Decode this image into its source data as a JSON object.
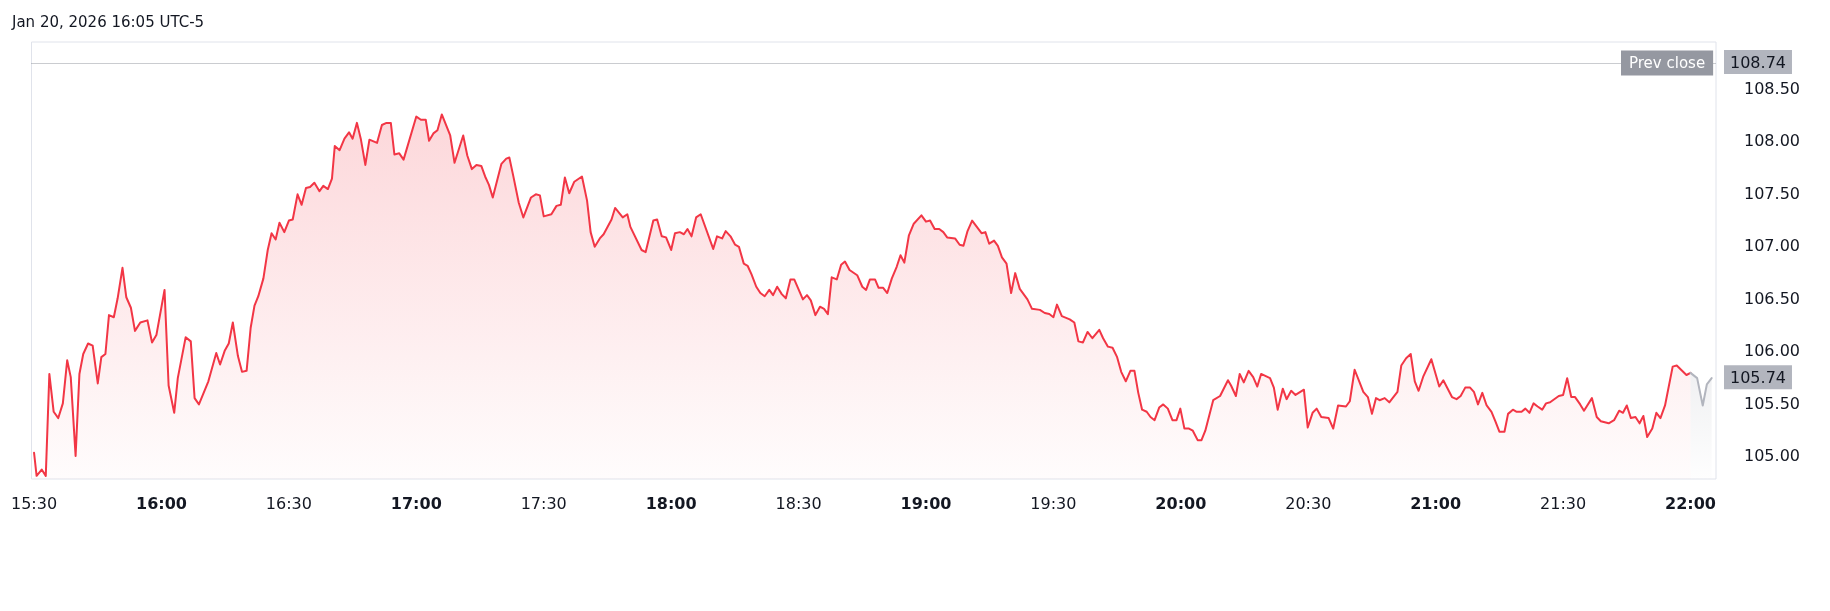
{
  "chart_data": {
    "type": "area",
    "annotations": [
      "Jan 20, 2026 16:05 UTC-5",
      "105.74",
      "108.74"
    ],
    "xlim": [
      15.49,
      22.1
    ],
    "xticks": [
      {
        "value": 15.5,
        "label": "15:30"
      },
      {
        "value": 16,
        "label": "16:00"
      },
      {
        "value": 16.5,
        "label": "16:30"
      },
      {
        "value": 17,
        "label": "17:00"
      },
      {
        "value": 17.5,
        "label": "17:30"
      },
      {
        "value": 18,
        "label": "18:00"
      },
      {
        "value": 18.5,
        "label": "18:30"
      },
      {
        "value": 19,
        "label": "19:00"
      },
      {
        "value": 19.5,
        "label": "19:30"
      },
      {
        "value": 20,
        "label": "20:00"
      },
      {
        "value": 20.5,
        "label": "20:30"
      },
      {
        "value": 21,
        "label": "21:00"
      },
      {
        "value": 21.5,
        "label": "21:30"
      },
      {
        "value": 22,
        "label": "22:00"
      }
    ],
    "ylim": [
      104.78,
      108.94
    ],
    "yticks": [
      {
        "value": 105,
        "label": "105.00"
      },
      {
        "value": 105.5,
        "label": "105.50"
      },
      {
        "value": 106,
        "label": "106.00"
      },
      {
        "value": 106.5,
        "label": "106.50"
      },
      {
        "value": 107,
        "label": "107.00"
      },
      {
        "value": 107.5,
        "label": "107.50"
      },
      {
        "value": 108,
        "label": "108.00"
      },
      {
        "value": 108.5,
        "label": "108.50"
      }
    ],
    "grid": false,
    "marker": "none",
    "line_style": "solid",
    "ref_lines": [
      {
        "axis": "y",
        "value": 108.74,
        "label": "Prev close",
        "color": "#9598a1",
        "line_style": "dotted"
      }
    ],
    "series": [
      {
        "color": "#f23645",
        "x": [
          15.5,
          15.51,
          15.53,
          15.546,
          15.56,
          15.577,
          15.595,
          15.613,
          15.63,
          15.644,
          15.663,
          15.678,
          15.693,
          15.712,
          15.73,
          15.75,
          15.764,
          15.78,
          15.794,
          15.813,
          15.828,
          15.847,
          15.862,
          15.88,
          15.896,
          15.917,
          15.945,
          15.963,
          15.98,
          16.012,
          16.028,
          16.05,
          16.064,
          16.095,
          16.115,
          16.13,
          16.147,
          16.184,
          16.215,
          16.23,
          16.248,
          16.264,
          16.28,
          16.3,
          16.316,
          16.334,
          16.35,
          16.365,
          16.38,
          16.4,
          16.417,
          16.432,
          16.448,
          16.463,
          16.482,
          16.5,
          16.515,
          16.534,
          16.55,
          16.567,
          16.583,
          16.6,
          16.62,
          16.635,
          16.653,
          16.669,
          16.68,
          16.699,
          16.718,
          16.736,
          16.75,
          16.767,
          16.782,
          16.8,
          16.816,
          16.846,
          16.865,
          16.883,
          16.9,
          16.914,
          16.933,
          16.95,
          17.0,
          17.018,
          17.037,
          17.05,
          17.067,
          17.083,
          17.1,
          17.133,
          17.15,
          17.184,
          17.2,
          17.218,
          17.236,
          17.255,
          17.27,
          17.285,
          17.3,
          17.334,
          17.353,
          17.365,
          17.38,
          17.402,
          17.42,
          17.45,
          17.469,
          17.485,
          17.5,
          17.53,
          17.55,
          17.567,
          17.583,
          17.6,
          17.62,
          17.65,
          17.67,
          17.684,
          17.7,
          17.72,
          17.735,
          17.766,
          17.78,
          17.81,
          17.828,
          17.84,
          17.884,
          17.9,
          17.93,
          17.945,
          17.963,
          17.98,
          18.0,
          18.015,
          18.034,
          18.05,
          18.064,
          18.08,
          18.098,
          18.116,
          18.165,
          18.18,
          18.2,
          18.214,
          18.233,
          18.251,
          18.266,
          18.285,
          18.3,
          18.315,
          18.334,
          18.35,
          18.367,
          18.385,
          18.4,
          18.416,
          18.434,
          18.45,
          18.468,
          18.483,
          18.517,
          18.533,
          18.548,
          18.566,
          18.584,
          18.6,
          18.615,
          18.63,
          18.65,
          18.667,
          18.682,
          18.7,
          18.73,
          18.75,
          18.765,
          18.78,
          18.8,
          18.814,
          18.832,
          18.848,
          18.866,
          18.885,
          18.9,
          18.915,
          18.933,
          18.952,
          18.982,
          19.0,
          19.016,
          19.034,
          19.052,
          19.068,
          19.083,
          19.114,
          19.132,
          19.147,
          19.163,
          19.181,
          19.218,
          19.233,
          19.248,
          19.267,
          19.282,
          19.298,
          19.316,
          19.334,
          19.35,
          19.368,
          19.398,
          19.416,
          19.447,
          19.466,
          19.484,
          19.5,
          19.514,
          19.533,
          19.564,
          19.582,
          19.598,
          19.616,
          19.634,
          19.653,
          19.68,
          19.695,
          19.714,
          19.732,
          19.75,
          19.766,
          19.784,
          19.802,
          19.818,
          19.833,
          19.848,
          19.866,
          19.881,
          19.897,
          19.915,
          19.931,
          19.949,
          19.967,
          19.983,
          19.998,
          20.014,
          20.032,
          20.047,
          20.066,
          20.081,
          20.096,
          20.127,
          20.154,
          20.185,
          20.197,
          20.216,
          20.231,
          20.247,
          20.266,
          20.284,
          20.3,
          20.315,
          20.35,
          20.365,
          20.38,
          20.4,
          20.415,
          20.433,
          20.45,
          20.483,
          20.498,
          20.517,
          20.533,
          20.551,
          20.58,
          20.598,
          20.617,
          20.648,
          20.663,
          20.682,
          20.7,
          20.716,
          20.734,
          20.75,
          20.766,
          20.78,
          20.8,
          20.818,
          20.85,
          20.865,
          20.884,
          20.902,
          20.918,
          20.933,
          20.952,
          20.983,
          21.014,
          21.03,
          21.064,
          21.082,
          21.098,
          21.116,
          21.135,
          21.15,
          21.166,
          21.183,
          21.2,
          21.219,
          21.234,
          21.25,
          21.27,
          21.284,
          21.303,
          21.318,
          21.337,
          21.352,
          21.368,
          21.384,
          21.4,
          21.418,
          21.433,
          21.449,
          21.483,
          21.5,
          21.516,
          21.532,
          21.547,
          21.567,
          21.582,
          21.613,
          21.632,
          21.648,
          21.679,
          21.7,
          21.72,
          21.735,
          21.75,
          21.766,
          21.784,
          21.8,
          21.815,
          21.83,
          21.85,
          21.866,
          21.882,
          21.9,
          21.93,
          21.946,
          21.984,
          22.0
        ],
        "values": [
          105.03,
          104.81,
          104.87,
          104.81,
          105.78,
          105.42,
          105.36,
          105.5,
          105.91,
          105.75,
          105.0,
          105.78,
          105.97,
          106.07,
          106.05,
          105.69,
          105.94,
          105.97,
          106.34,
          106.32,
          106.5,
          106.79,
          106.51,
          106.41,
          106.19,
          106.27,
          106.29,
          106.08,
          106.15,
          106.58,
          105.67,
          105.41,
          105.74,
          106.13,
          106.09,
          105.55,
          105.49,
          105.71,
          105.98,
          105.87,
          106.0,
          106.07,
          106.27,
          105.95,
          105.8,
          105.81,
          106.22,
          106.43,
          106.52,
          106.69,
          106.96,
          107.12,
          107.06,
          107.22,
          107.13,
          107.24,
          107.25,
          107.49,
          107.39,
          107.55,
          107.56,
          107.6,
          107.52,
          107.57,
          107.54,
          107.64,
          107.95,
          107.91,
          108.02,
          108.08,
          108.02,
          108.17,
          108.02,
          107.77,
          108.01,
          107.98,
          108.15,
          108.17,
          108.17,
          107.87,
          107.88,
          107.82,
          108.23,
          108.2,
          108.2,
          108.0,
          108.07,
          108.1,
          108.25,
          108.05,
          107.79,
          108.05,
          107.86,
          107.73,
          107.77,
          107.76,
          107.66,
          107.58,
          107.46,
          107.78,
          107.83,
          107.84,
          107.67,
          107.41,
          107.27,
          107.46,
          107.49,
          107.48,
          107.28,
          107.3,
          107.38,
          107.39,
          107.65,
          107.5,
          107.61,
          107.66,
          107.43,
          107.13,
          106.99,
          107.07,
          107.11,
          107.25,
          107.36,
          107.27,
          107.3,
          107.18,
          106.96,
          106.94,
          107.24,
          107.25,
          107.09,
          107.08,
          106.96,
          107.12,
          107.13,
          107.11,
          107.16,
          107.09,
          107.27,
          107.3,
          106.97,
          107.09,
          107.07,
          107.14,
          107.09,
          107.01,
          106.99,
          106.83,
          106.81,
          106.73,
          106.61,
          106.55,
          106.52,
          106.58,
          106.53,
          106.61,
          106.54,
          106.5,
          106.68,
          106.68,
          106.49,
          106.53,
          106.48,
          106.34,
          106.42,
          106.4,
          106.35,
          106.7,
          106.68,
          106.82,
          106.85,
          106.77,
          106.72,
          106.61,
          106.58,
          106.68,
          106.68,
          106.6,
          106.6,
          106.55,
          106.69,
          106.8,
          106.91,
          106.84,
          107.1,
          107.21,
          107.29,
          107.23,
          107.24,
          107.16,
          107.16,
          107.13,
          107.08,
          107.07,
          107.01,
          107.0,
          107.14,
          107.24,
          107.12,
          107.13,
          107.02,
          107.05,
          107.0,
          106.89,
          106.83,
          106.55,
          106.74,
          106.59,
          106.49,
          106.4,
          106.39,
          106.36,
          106.35,
          106.32,
          106.44,
          106.33,
          106.3,
          106.27,
          106.09,
          106.08,
          106.18,
          106.12,
          106.2,
          106.12,
          106.04,
          106.03,
          105.94,
          105.8,
          105.71,
          105.81,
          105.81,
          105.6,
          105.44,
          105.42,
          105.37,
          105.34,
          105.46,
          105.49,
          105.45,
          105.34,
          105.34,
          105.45,
          105.26,
          105.26,
          105.24,
          105.15,
          105.15,
          105.24,
          105.53,
          105.57,
          105.72,
          105.67,
          105.57,
          105.78,
          105.7,
          105.81,
          105.75,
          105.66,
          105.78,
          105.74,
          105.65,
          105.44,
          105.64,
          105.54,
          105.62,
          105.58,
          105.63,
          105.27,
          105.41,
          105.45,
          105.37,
          105.36,
          105.26,
          105.48,
          105.47,
          105.52,
          105.82,
          105.71,
          105.61,
          105.56,
          105.4,
          105.55,
          105.53,
          105.55,
          105.51,
          105.61,
          105.86,
          105.93,
          105.97,
          105.71,
          105.62,
          105.76,
          105.92,
          105.66,
          105.72,
          105.56,
          105.54,
          105.57,
          105.65,
          105.65,
          105.61,
          105.49,
          105.6,
          105.48,
          105.42,
          105.33,
          105.23,
          105.23,
          105.4,
          105.44,
          105.42,
          105.42,
          105.45,
          105.41,
          105.5,
          105.47,
          105.44,
          105.5,
          105.51,
          105.57,
          105.58,
          105.74,
          105.56,
          105.56,
          105.49,
          105.43,
          105.55,
          105.37,
          105.33,
          105.31,
          105.34,
          105.43,
          105.41,
          105.48,
          105.36,
          105.37,
          105.31,
          105.38,
          105.18,
          105.26,
          105.41,
          105.36,
          105.48,
          105.85,
          105.86,
          105.77,
          105.79
        ]
      },
      {
        "color": "#b2b5be",
        "x": [
          22.0,
          22.026,
          22.048,
          22.064,
          22.083
        ],
        "values": [
          105.79,
          105.74,
          105.48,
          105.68,
          105.74
        ]
      }
    ]
  }
}
